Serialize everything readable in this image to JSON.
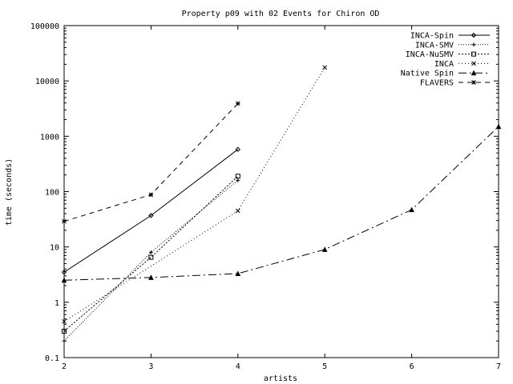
{
  "chart_data": {
    "type": "line",
    "title": "Property p09 with 02 Events for Chiron OD",
    "xlabel": "artists",
    "ylabel": "time (seconds)",
    "xlim": [
      2,
      7
    ],
    "ylim": [
      0.1,
      100000
    ],
    "yscale": "log",
    "grid": false,
    "legend_position": "top-right",
    "x_ticks": [
      "2",
      "3",
      "4",
      "5",
      "6",
      "7"
    ],
    "y_ticks": [
      "0.1",
      "1",
      "10",
      "100",
      "1000",
      "10000",
      "100000"
    ],
    "series": [
      {
        "name": "INCA-Spin",
        "marker": "diamond",
        "dash": "",
        "x": [
          2,
          3,
          4
        ],
        "y": [
          3.5,
          37,
          580
        ]
      },
      {
        "name": "INCA-SMV",
        "marker": "plus",
        "dash": "1,2",
        "x": [
          2,
          3,
          4
        ],
        "y": [
          0.2,
          8,
          160
        ]
      },
      {
        "name": "INCA-NuSMV",
        "marker": "square",
        "dash": "2,2",
        "x": [
          2,
          3,
          4
        ],
        "y": [
          0.3,
          6.5,
          190
        ]
      },
      {
        "name": "INCA",
        "marker": "x",
        "dash": "1,3",
        "x": [
          2,
          4,
          5
        ],
        "y": [
          0.45,
          45,
          17500
        ]
      },
      {
        "name": "Native Spin",
        "marker": "triangle",
        "dash": "10,4,2,4",
        "x": [
          2,
          3,
          4,
          5,
          6,
          7
        ],
        "y": [
          2.5,
          2.8,
          3.3,
          9,
          47,
          1500
        ]
      },
      {
        "name": "FLAVERS",
        "marker": "star",
        "dash": "6,5",
        "x": [
          2,
          3,
          4
        ],
        "y": [
          29,
          88,
          3900
        ]
      }
    ]
  }
}
